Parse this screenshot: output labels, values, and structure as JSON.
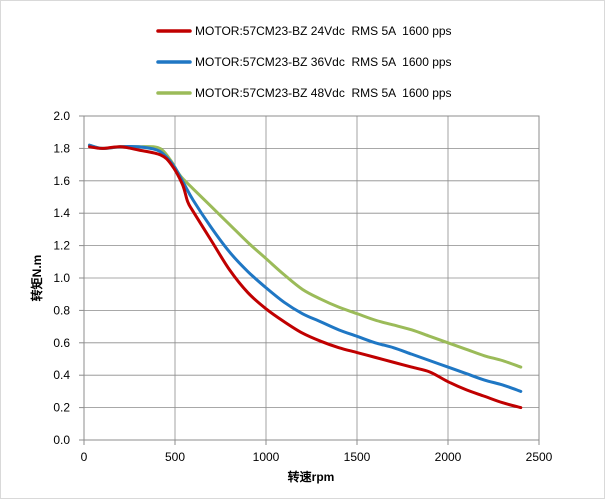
{
  "chart_data": {
    "type": "line",
    "title": "",
    "xlabel": "转速rpm",
    "ylabel": "转矩N.m",
    "xlim": [
      0,
      2500
    ],
    "ylim": [
      0,
      2.0
    ],
    "x_ticks": [
      "0",
      "500",
      "1000",
      "1500",
      "2000",
      "2500"
    ],
    "y_ticks": [
      "0.0",
      "0.2",
      "0.4",
      "0.6",
      "0.8",
      "1.0",
      "1.2",
      "1.4",
      "1.6",
      "1.8",
      "2.0"
    ],
    "grid": true,
    "legend_position": "top",
    "series": [
      {
        "name": "MOTOR:57CM23-BZ 24Vdc  RMS 5A  1600 pps",
        "color": "#c00000",
        "points": [
          [
            30,
            1.81
          ],
          [
            100,
            1.8
          ],
          [
            200,
            1.81
          ],
          [
            300,
            1.79
          ],
          [
            420,
            1.76
          ],
          [
            480,
            1.7
          ],
          [
            540,
            1.58
          ],
          [
            570,
            1.47
          ],
          [
            600,
            1.41
          ],
          [
            700,
            1.23
          ],
          [
            800,
            1.05
          ],
          [
            900,
            0.91
          ],
          [
            1000,
            0.81
          ],
          [
            1100,
            0.73
          ],
          [
            1200,
            0.66
          ],
          [
            1300,
            0.61
          ],
          [
            1400,
            0.57
          ],
          [
            1500,
            0.54
          ],
          [
            1600,
            0.51
          ],
          [
            1700,
            0.48
          ],
          [
            1800,
            0.45
          ],
          [
            1900,
            0.42
          ],
          [
            2000,
            0.36
          ],
          [
            2100,
            0.31
          ],
          [
            2200,
            0.27
          ],
          [
            2300,
            0.23
          ],
          [
            2400,
            0.2
          ]
        ]
      },
      {
        "name": "MOTOR:57CM23-BZ 36Vdc  RMS 5A  1600 pps",
        "color": "#1f77c4",
        "points": [
          [
            30,
            1.82
          ],
          [
            100,
            1.8
          ],
          [
            200,
            1.81
          ],
          [
            300,
            1.81
          ],
          [
            400,
            1.79
          ],
          [
            450,
            1.75
          ],
          [
            500,
            1.68
          ],
          [
            550,
            1.58
          ],
          [
            600,
            1.48
          ],
          [
            700,
            1.31
          ],
          [
            800,
            1.16
          ],
          [
            900,
            1.04
          ],
          [
            1000,
            0.94
          ],
          [
            1100,
            0.85
          ],
          [
            1200,
            0.78
          ],
          [
            1300,
            0.73
          ],
          [
            1400,
            0.68
          ],
          [
            1500,
            0.64
          ],
          [
            1600,
            0.6
          ],
          [
            1700,
            0.57
          ],
          [
            1800,
            0.53
          ],
          [
            1900,
            0.49
          ],
          [
            2000,
            0.45
          ],
          [
            2100,
            0.41
          ],
          [
            2200,
            0.37
          ],
          [
            2300,
            0.34
          ],
          [
            2400,
            0.3
          ]
        ]
      },
      {
        "name": "MOTOR:57CM23-BZ 48Vdc  RMS 5A  1600 pps",
        "color": "#9bbb59",
        "points": [
          [
            30,
            1.82
          ],
          [
            100,
            1.8
          ],
          [
            200,
            1.81
          ],
          [
            300,
            1.81
          ],
          [
            380,
            1.81
          ],
          [
            430,
            1.79
          ],
          [
            480,
            1.72
          ],
          [
            530,
            1.63
          ],
          [
            600,
            1.55
          ],
          [
            700,
            1.44
          ],
          [
            800,
            1.33
          ],
          [
            900,
            1.22
          ],
          [
            1000,
            1.12
          ],
          [
            1100,
            1.02
          ],
          [
            1200,
            0.93
          ],
          [
            1300,
            0.87
          ],
          [
            1400,
            0.82
          ],
          [
            1500,
            0.78
          ],
          [
            1600,
            0.74
          ],
          [
            1700,
            0.71
          ],
          [
            1800,
            0.68
          ],
          [
            1900,
            0.64
          ],
          [
            2000,
            0.6
          ],
          [
            2100,
            0.56
          ],
          [
            2200,
            0.52
          ],
          [
            2300,
            0.49
          ],
          [
            2400,
            0.45
          ]
        ]
      }
    ]
  }
}
